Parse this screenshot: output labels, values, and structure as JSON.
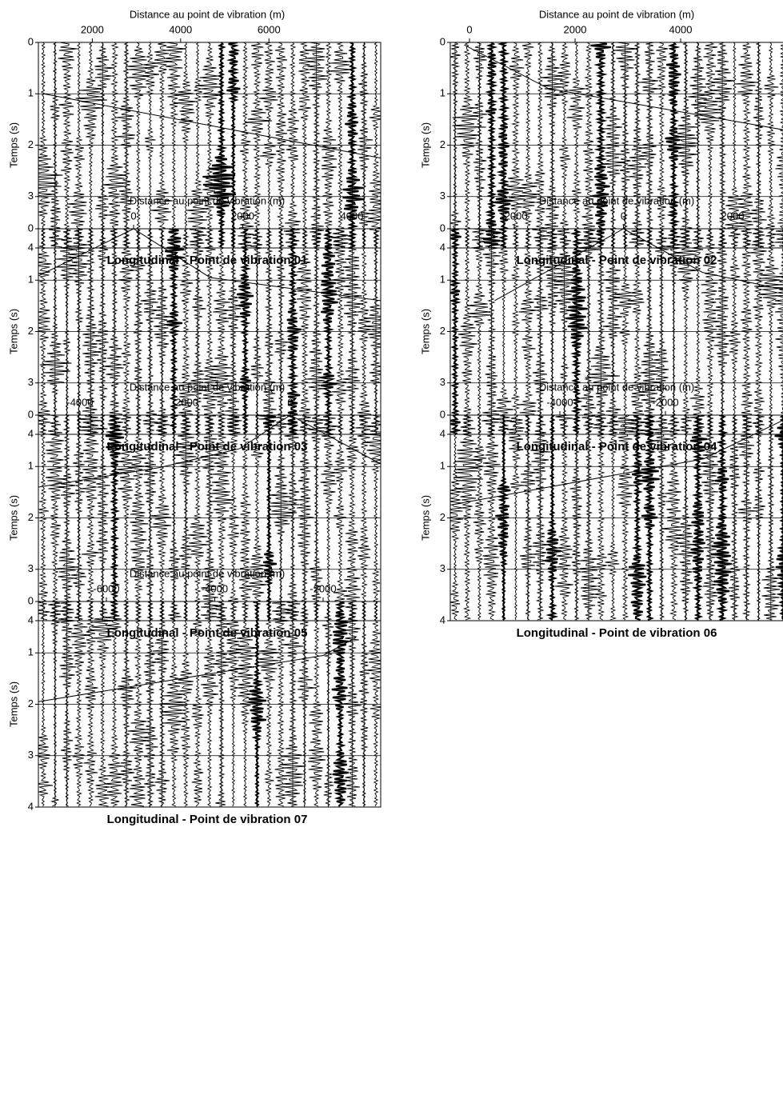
{
  "chart_data": [
    {
      "type": "line",
      "title": "Longitudinal - Point de vibration 01",
      "xlabel": "Distance au point de vibration (m)",
      "ylabel": "Temps (s)",
      "xlim": [
        780,
        8530
      ],
      "ylim": [
        0,
        4
      ],
      "y_inverted": true,
      "grid": true,
      "color": "#000000",
      "xticks": [
        2000,
        4000,
        6000
      ],
      "yticks": [
        0,
        1,
        2,
        3,
        4
      ],
      "x": [
        900,
        8530
      ],
      "values": [
        1.0,
        2.25
      ]
    },
    {
      "type": "line",
      "title": "Longitudinal - Point de vibration 02",
      "xlabel": "Distance au point de vibration (m)",
      "ylabel": "Temps (s)",
      "xlim": [
        -364,
        6030
      ],
      "ylim": [
        0,
        4
      ],
      "y_inverted": true,
      "grid": true,
      "color": "#000000",
      "xticks": [
        0,
        2000,
        4000
      ],
      "yticks": [
        0,
        1,
        2,
        3,
        4
      ],
      "x": [
        -100,
        1500,
        5940
      ],
      "values": [
        0.05,
        0.9,
        1.7
      ]
    },
    {
      "type": "line",
      "title": "Longitudinal - Point de vibration 03",
      "xlabel": "Distance au point de vibration (m)",
      "ylabel": "Temps (s)",
      "xlim": [
        -1744,
        4527
      ],
      "ylim": [
        0,
        4
      ],
      "y_inverted": true,
      "grid": true,
      "color": "#000000",
      "xticks": [
        0,
        2000,
        4000
      ],
      "yticks": [
        0,
        1,
        2,
        3,
        4
      ],
      "x": [
        -1744,
        0,
        1400,
        4527
      ],
      "values": [
        0.92,
        0,
        0.95,
        1.4
      ]
    },
    {
      "type": "line",
      "title": "Longitudinal - Point de vibration 04",
      "xlabel": "Distance au point de vibration (m)",
      "ylabel": "Temps (s)",
      "xlim": [
        -3172,
        3011
      ],
      "ylim": [
        0,
        4
      ],
      "y_inverted": true,
      "grid": true,
      "color": "#000000",
      "xticks": [
        -2000,
        0,
        2000
      ],
      "yticks": [
        0,
        1,
        2,
        3,
        4
      ],
      "x": [
        -2360,
        0,
        1450,
        3011
      ],
      "values": [
        1.4,
        0,
        0.85,
        1.2
      ]
    },
    {
      "type": "line",
      "title": "Longitudinal - Point de vibration 05",
      "xlabel": "Distance au point de vibration (m)",
      "ylabel": "Temps (s)",
      "xlim": [
        -4791,
        1719
      ],
      "ylim": [
        0,
        4
      ],
      "y_inverted": true,
      "grid": true,
      "color": "#000000",
      "xticks": [
        -4000,
        -2000,
        0
      ],
      "yticks": [
        0,
        1,
        2,
        3,
        4
      ],
      "x": [
        -4791,
        -2480,
        -960,
        0,
        1719
      ],
      "values": [
        1.4,
        1.02,
        0.65,
        0,
        0.95
      ]
    },
    {
      "type": "line",
      "title": "Longitudinal - Point de vibration 06",
      "xlabel": "Distance au point de vibration (m)",
      "ylabel": "Temps (s)",
      "xlim": [
        -6076,
        318
      ],
      "ylim": [
        0,
        4
      ],
      "y_inverted": true,
      "grid": true,
      "color": "#000000",
      "xticks": [
        -4000,
        -2000
      ],
      "yticks": [
        0,
        1,
        2,
        3,
        4
      ],
      "x": [
        -6076,
        -1273,
        227
      ],
      "values": [
        1.75,
        0.85,
        0.1
      ]
    },
    {
      "type": "line",
      "title": "Longitudinal - Point de vibration 07",
      "xlabel": "Distance au point de vibration (m)",
      "ylabel": "Temps (s)",
      "xlim": [
        -7255,
        -937
      ],
      "ylim": [
        0,
        4
      ],
      "y_inverted": true,
      "grid": true,
      "color": "#000000",
      "xticks": [
        -6000,
        -4000,
        -2000
      ],
      "yticks": [
        0,
        1,
        2,
        3,
        4
      ],
      "x": [
        -7255,
        -2000,
        -1395
      ],
      "values": [
        1.95,
        1.05,
        0.7
      ]
    }
  ]
}
